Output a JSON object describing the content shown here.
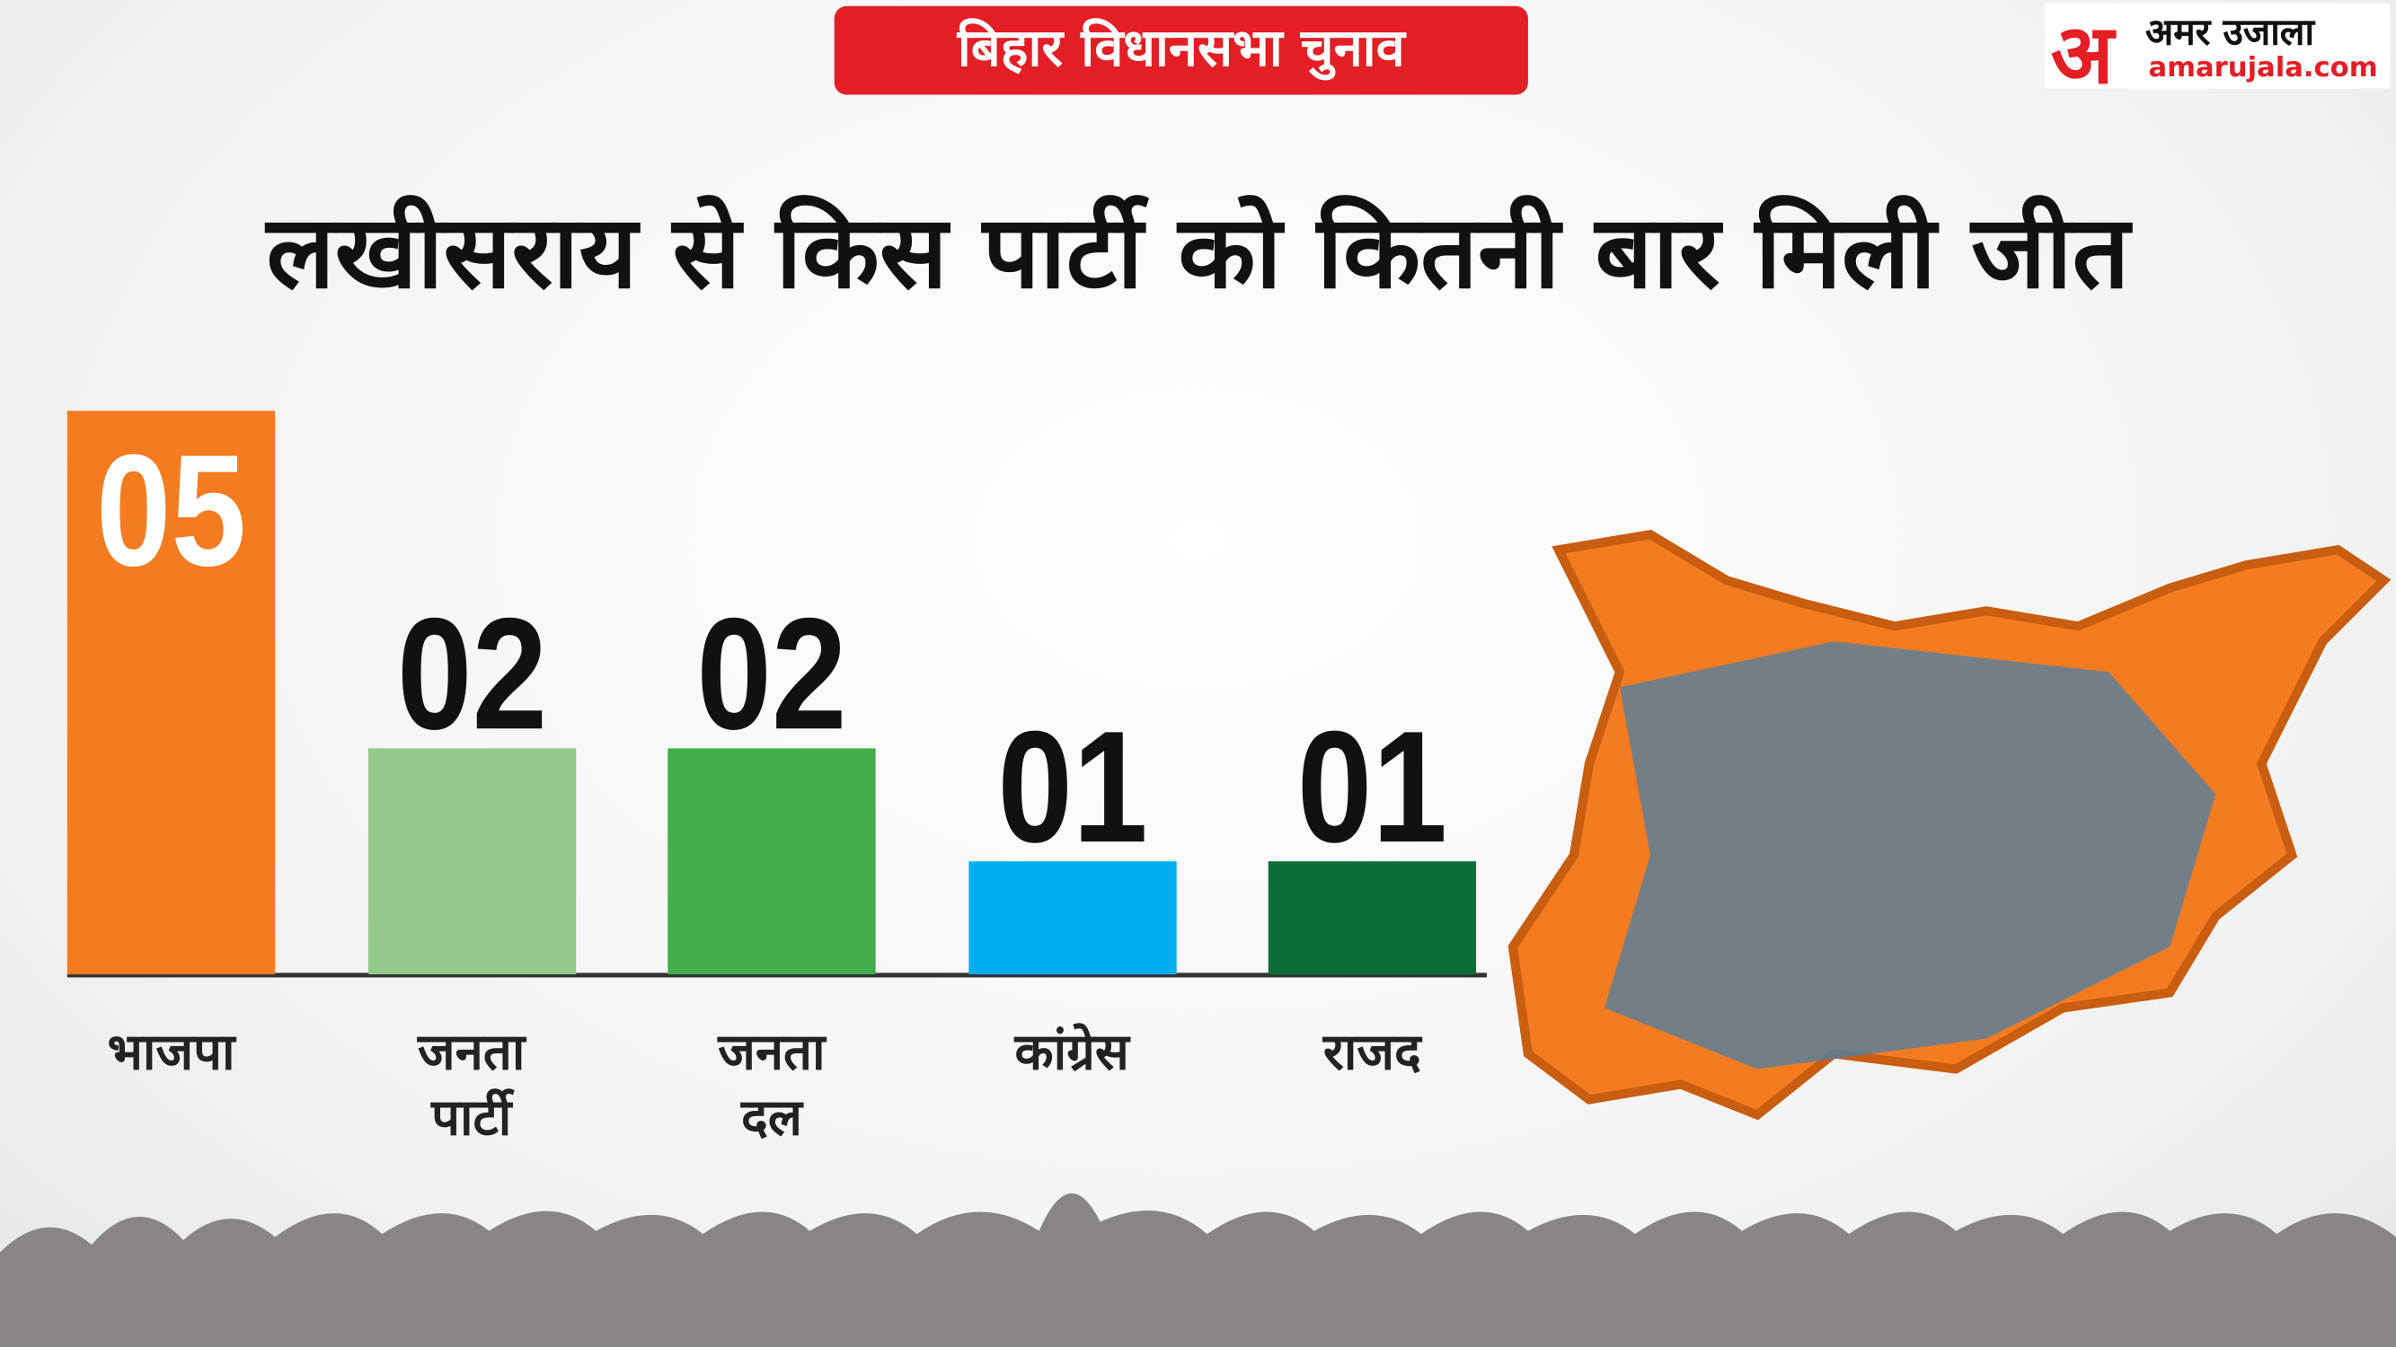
{
  "header": {
    "badge": "बिहार विधानसभा चुनाव",
    "logo_mark": "अ",
    "logo_name": "अमर उजाला",
    "logo_site": "amarujala.com"
  },
  "chart_data": {
    "type": "bar",
    "title": "लखीसराय से किस पार्टी को कितनी बार मिली जीत",
    "categories": [
      "भाजपा",
      "जनता पार्टी",
      "जनता दल",
      "कांग्रेस",
      "राजद"
    ],
    "values": [
      5,
      2,
      2,
      1,
      1
    ],
    "value_labels": [
      "05",
      "02",
      "02",
      "01",
      "01"
    ],
    "colors": [
      "#f47b20",
      "#93c98a",
      "#43ad4a",
      "#00aeef",
      "#0b6e3a"
    ]
  }
}
